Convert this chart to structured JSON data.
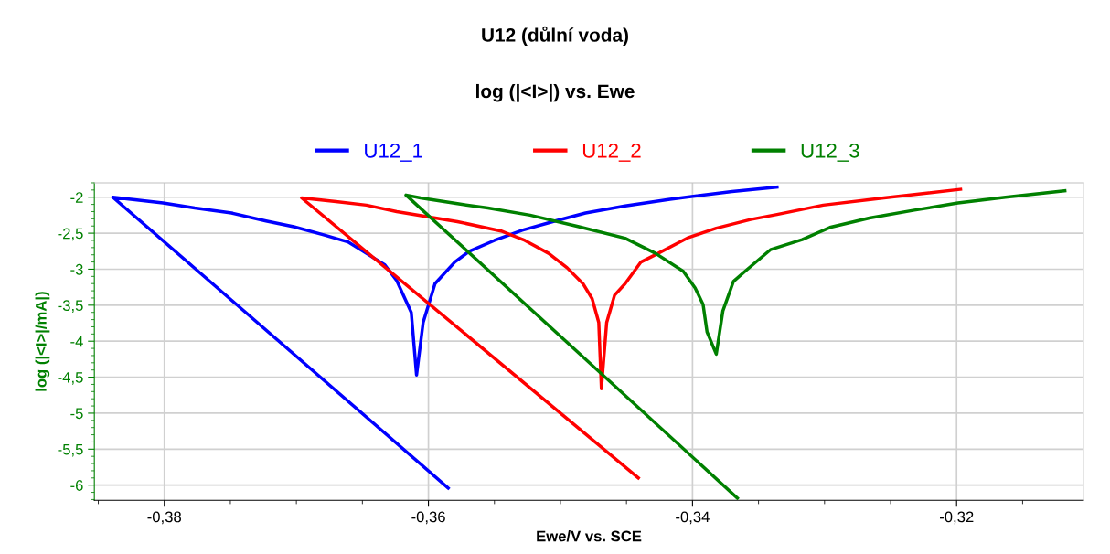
{
  "chart_data": {
    "type": "line",
    "title": "U12 (důlní voda)",
    "subtitle": "log (|<I>|) vs. Ewe",
    "xlabel": "Ewe/V vs. SCE",
    "ylabel": "log (|<I>|/mA|)",
    "xlim": [
      -0.3853,
      -0.3104
    ],
    "ylim": [
      -6.21,
      -1.8
    ],
    "xticks": [
      {
        "value": -0.38,
        "label": "-0,38"
      },
      {
        "value": -0.36,
        "label": "-0,36"
      },
      {
        "value": -0.34,
        "label": "-0,34"
      },
      {
        "value": -0.32,
        "label": "-0,32"
      }
    ],
    "yticks": [
      {
        "value": -2,
        "label": "-2"
      },
      {
        "value": -2.5,
        "label": "-2,5"
      },
      {
        "value": -3,
        "label": "-3"
      },
      {
        "value": -3.5,
        "label": "-3,5"
      },
      {
        "value": -4,
        "label": "-4"
      },
      {
        "value": -4.5,
        "label": "-4,5"
      },
      {
        "value": -5,
        "label": "-5"
      },
      {
        "value": -5.5,
        "label": "-5,5"
      },
      {
        "value": -6,
        "label": "-6"
      }
    ],
    "grid": true,
    "legend": "top",
    "marker": "none",
    "line_style": "solid",
    "series": [
      {
        "name": "U12_1",
        "color": "#0000ff",
        "x": [
          -0.3585,
          -0.3839,
          -0.3801,
          -0.3777,
          -0.3749,
          -0.3723,
          -0.3702,
          -0.368,
          -0.3661,
          -0.3647,
          -0.3633,
          -0.3624,
          -0.3613,
          -0.3609,
          -0.3604,
          -0.3595,
          -0.358,
          -0.3569,
          -0.355,
          -0.3529,
          -0.3504,
          -0.3481,
          -0.3451,
          -0.3417,
          -0.337,
          -0.3336
        ],
        "values": [
          -6.04,
          -2.0,
          -2.08,
          -2.15,
          -2.22,
          -2.33,
          -2.41,
          -2.52,
          -2.62,
          -2.78,
          -2.94,
          -3.16,
          -3.6,
          -4.47,
          -3.74,
          -3.2,
          -2.9,
          -2.75,
          -2.6,
          -2.46,
          -2.33,
          -2.22,
          -2.12,
          -2.03,
          -1.92,
          -1.86
        ]
      },
      {
        "name": "U12_2",
        "color": "#ff0000",
        "x": [
          -0.3441,
          -0.3696,
          -0.367,
          -0.3647,
          -0.3624,
          -0.3601,
          -0.3578,
          -0.3545,
          -0.3527,
          -0.3509,
          -0.3495,
          -0.3483,
          -0.3476,
          -0.3471,
          -0.3469,
          -0.3465,
          -0.3459,
          -0.3451,
          -0.3439,
          -0.3426,
          -0.3403,
          -0.3382,
          -0.3356,
          -0.3336,
          -0.3301,
          -0.3255,
          -0.3197
        ],
        "values": [
          -5.9,
          -2.01,
          -2.06,
          -2.11,
          -2.2,
          -2.27,
          -2.34,
          -2.47,
          -2.6,
          -2.78,
          -2.98,
          -3.2,
          -3.41,
          -3.74,
          -4.66,
          -3.74,
          -3.36,
          -3.2,
          -2.9,
          -2.78,
          -2.56,
          -2.43,
          -2.31,
          -2.24,
          -2.11,
          -2.01,
          -1.89
        ]
      },
      {
        "name": "U12_3",
        "color": "#008000",
        "x": [
          -0.3366,
          -0.3617,
          -0.3606,
          -0.3578,
          -0.3555,
          -0.3523,
          -0.3486,
          -0.3451,
          -0.3428,
          -0.3407,
          -0.3398,
          -0.3392,
          -0.3389,
          -0.3382,
          -0.3377,
          -0.3369,
          -0.3359,
          -0.3341,
          -0.3317,
          -0.3296,
          -0.3266,
          -0.3232,
          -0.3199,
          -0.3163,
          -0.3118
        ],
        "values": [
          -6.18,
          -1.97,
          -2.01,
          -2.09,
          -2.15,
          -2.25,
          -2.41,
          -2.57,
          -2.78,
          -3.03,
          -3.26,
          -3.49,
          -3.87,
          -4.18,
          -3.58,
          -3.17,
          -3.01,
          -2.73,
          -2.59,
          -2.42,
          -2.29,
          -2.18,
          -2.08,
          -2.0,
          -1.91
        ]
      }
    ]
  }
}
